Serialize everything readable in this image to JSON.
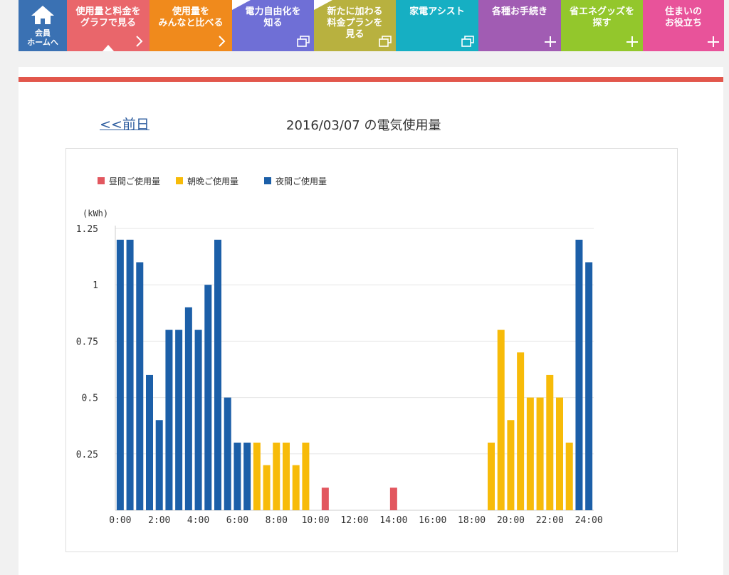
{
  "nav": {
    "home_label": "会員\nホームへ",
    "items": [
      {
        "label": "使用量と料金を\nグラフで見る",
        "color": "#e9666b",
        "icon": "chevron-right"
      },
      {
        "label": "使用量を\nみんなと比べる",
        "color": "#f08a1c",
        "icon": "chevron-right"
      },
      {
        "label": "電力自由化を\n知る",
        "color": "#6f6fd6",
        "icon": "external-window",
        "tag": true
      },
      {
        "label": "新たに加わる\n料金プランを\n見る",
        "color": "#b8b13f",
        "icon": "external-window",
        "tag": true
      },
      {
        "label": "家電アシスト",
        "color": "#16afc3",
        "icon": "external-window"
      },
      {
        "label": "各種お手続き",
        "color": "#a15cb3",
        "icon": "plus"
      },
      {
        "label": "省エネグッズを\n探す",
        "color": "#93c72c",
        "icon": "plus"
      },
      {
        "label": "住まいの\nお役立ち",
        "color": "#e8539a",
        "icon": "plus"
      }
    ]
  },
  "page": {
    "prev_link": "<<前日",
    "title": "2016/03/07  の電気使用量"
  },
  "colors": {
    "day": "#e2575f",
    "morning_evening": "#f7bb09",
    "night": "#1c5fa8"
  },
  "chart_data": {
    "type": "bar",
    "ylabel": "(kWh)",
    "ylim": [
      0,
      1.25
    ],
    "yticks": [
      "0.25",
      "0.5",
      "0.75",
      "1",
      "1.25"
    ],
    "xticks": [
      "0:00",
      "2:00",
      "4:00",
      "6:00",
      "8:00",
      "10:00",
      "12:00",
      "14:00",
      "16:00",
      "18:00",
      "20:00",
      "22:00",
      "24:00"
    ],
    "legend": [
      {
        "name": "昼間ご使用量",
        "key": "day"
      },
      {
        "name": "朝晩ご使用量",
        "key": "morning_evening"
      },
      {
        "name": "夜間ご使用量",
        "key": "night"
      }
    ],
    "interval": "30min",
    "values": [
      1.2,
      1.2,
      1.1,
      0.6,
      0.4,
      0.8,
      0.8,
      0.9,
      0.8,
      1.0,
      1.2,
      0.5,
      0.3,
      0.3,
      0.3,
      0.2,
      0.3,
      0.3,
      0.2,
      0.3,
      0,
      0.1,
      0,
      0,
      0,
      0,
      0,
      0,
      0.1,
      0,
      0,
      0,
      0,
      0,
      0,
      0,
      0,
      0,
      0.3,
      0.8,
      0.4,
      0.7,
      0.5,
      0.5,
      0.6,
      0.5,
      0.3,
      1.2,
      1.1
    ],
    "categories": [
      "night",
      "night",
      "night",
      "night",
      "night",
      "night",
      "night",
      "night",
      "night",
      "night",
      "night",
      "night",
      "night",
      "night",
      "morning_evening",
      "morning_evening",
      "morning_evening",
      "morning_evening",
      "morning_evening",
      "morning_evening",
      "day",
      "day",
      "day",
      "day",
      "day",
      "day",
      "day",
      "day",
      "day",
      "day",
      "day",
      "day",
      "day",
      "day",
      "day",
      "day",
      "day",
      "day",
      "morning_evening",
      "morning_evening",
      "morning_evening",
      "morning_evening",
      "morning_evening",
      "morning_evening",
      "morning_evening",
      "morning_evening",
      "morning_evening",
      "night",
      "night"
    ]
  }
}
